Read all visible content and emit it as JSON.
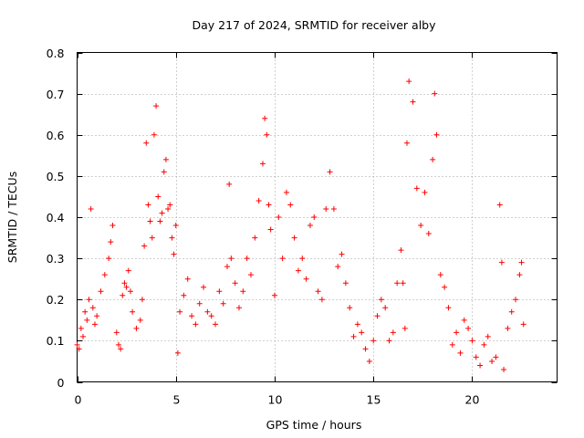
{
  "chart_data": {
    "type": "scatter",
    "title": "Day 217 of 2024, SRMTID for receiver alby",
    "xlabel": "GPS time / hours",
    "ylabel": "SRMTID / TECUs",
    "xlim": [
      0,
      24.3
    ],
    "ylim": [
      0,
      0.8
    ],
    "xticks": [
      "0",
      "5",
      "10",
      "15",
      "20"
    ],
    "yticks": [
      "0",
      "0.1",
      "0.2",
      "0.3",
      "0.4",
      "0.5",
      "0.6",
      "0.7",
      "0.8"
    ],
    "grid": true,
    "marker": "plus",
    "colors": {
      "points": "#ff0000",
      "grid": "#a0a0a0",
      "axis": "#000000"
    },
    "series": [
      {
        "name": "SRMTID",
        "x": [
          0.0,
          0.1,
          0.2,
          0.3,
          0.4,
          0.5,
          0.6,
          0.7,
          0.8,
          0.9,
          1.0,
          1.2,
          1.4,
          1.6,
          1.7,
          1.8,
          2.0,
          2.1,
          2.2,
          2.3,
          2.4,
          2.5,
          2.6,
          2.7,
          2.8,
          3.0,
          3.2,
          3.3,
          3.4,
          3.5,
          3.6,
          3.7,
          3.8,
          3.9,
          4.0,
          4.1,
          4.2,
          4.3,
          4.4,
          4.5,
          4.6,
          4.7,
          4.8,
          4.9,
          5.0,
          5.1,
          5.2,
          5.4,
          5.6,
          5.8,
          6.0,
          6.2,
          6.4,
          6.6,
          6.8,
          7.0,
          7.2,
          7.4,
          7.6,
          7.7,
          7.8,
          8.0,
          8.2,
          8.4,
          8.6,
          8.8,
          9.0,
          9.2,
          9.4,
          9.5,
          9.6,
          9.7,
          9.8,
          10.0,
          10.2,
          10.4,
          10.6,
          10.8,
          11.0,
          11.2,
          11.4,
          11.6,
          11.8,
          12.0,
          12.2,
          12.4,
          12.6,
          12.8,
          13.0,
          13.2,
          13.4,
          13.6,
          13.8,
          14.0,
          14.2,
          14.4,
          14.6,
          14.8,
          15.0,
          15.2,
          15.4,
          15.6,
          15.8,
          16.0,
          16.2,
          16.4,
          16.5,
          16.6,
          16.7,
          16.8,
          17.0,
          17.2,
          17.4,
          17.6,
          17.8,
          18.0,
          18.1,
          18.2,
          18.4,
          18.6,
          18.8,
          19.0,
          19.2,
          19.4,
          19.6,
          19.8,
          20.0,
          20.2,
          20.4,
          20.6,
          20.8,
          21.0,
          21.2,
          21.4,
          21.5,
          21.6,
          21.8,
          22.0,
          22.2,
          22.4,
          22.5,
          22.6
        ],
        "y": [
          0.09,
          0.08,
          0.13,
          0.11,
          0.17,
          0.15,
          0.2,
          0.42,
          0.18,
          0.14,
          0.16,
          0.22,
          0.26,
          0.3,
          0.34,
          0.38,
          0.12,
          0.09,
          0.08,
          0.21,
          0.24,
          0.23,
          0.27,
          0.22,
          0.17,
          0.13,
          0.15,
          0.2,
          0.33,
          0.58,
          0.43,
          0.39,
          0.35,
          0.6,
          0.67,
          0.45,
          0.39,
          0.41,
          0.51,
          0.54,
          0.42,
          0.43,
          0.35,
          0.31,
          0.38,
          0.07,
          0.17,
          0.21,
          0.25,
          0.16,
          0.14,
          0.19,
          0.23,
          0.17,
          0.16,
          0.14,
          0.22,
          0.19,
          0.28,
          0.48,
          0.3,
          0.24,
          0.18,
          0.22,
          0.3,
          0.26,
          0.35,
          0.44,
          0.53,
          0.64,
          0.6,
          0.43,
          0.37,
          0.21,
          0.4,
          0.3,
          0.46,
          0.43,
          0.35,
          0.27,
          0.3,
          0.25,
          0.38,
          0.4,
          0.22,
          0.2,
          0.42,
          0.51,
          0.42,
          0.28,
          0.31,
          0.24,
          0.18,
          0.11,
          0.14,
          0.12,
          0.08,
          0.05,
          0.1,
          0.16,
          0.2,
          0.18,
          0.1,
          0.12,
          0.24,
          0.32,
          0.24,
          0.13,
          0.58,
          0.73,
          0.68,
          0.47,
          0.38,
          0.46,
          0.36,
          0.54,
          0.7,
          0.6,
          0.26,
          0.23,
          0.18,
          0.09,
          0.12,
          0.07,
          0.15,
          0.13,
          0.1,
          0.06,
          0.04,
          0.09,
          0.11,
          0.05,
          0.06,
          0.43,
          0.29,
          0.03,
          0.13,
          0.17,
          0.2,
          0.26,
          0.29,
          0.14
        ]
      }
    ]
  }
}
